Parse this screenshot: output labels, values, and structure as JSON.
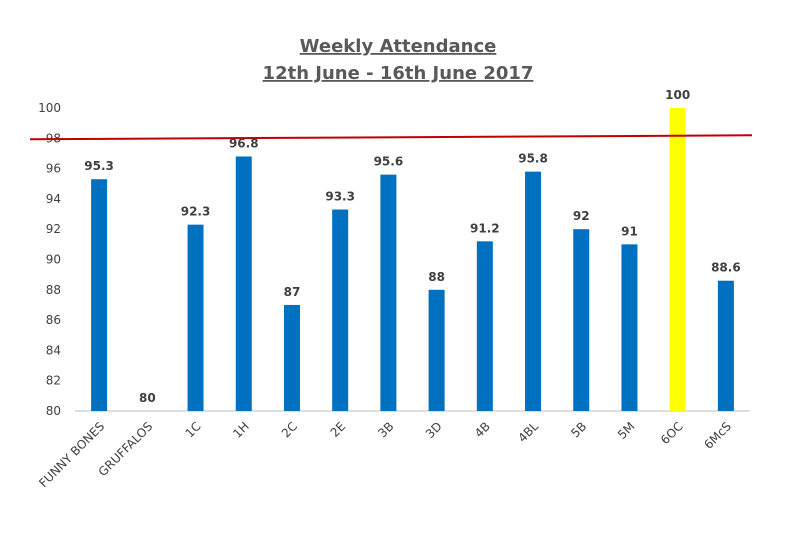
{
  "chart_data": {
    "type": "bar",
    "title": "Weekly Attendance",
    "subtitle": "12th June - 16th June 2017",
    "categories": [
      "FUNNY BONES",
      "GRUFFALOS",
      "1C",
      "1H",
      "2C",
      "2E",
      "3B",
      "3D",
      "4B",
      "4BL",
      "5B",
      "5M",
      "6OC",
      "6McS"
    ],
    "values": [
      95.3,
      80,
      92.3,
      96.8,
      87,
      93.3,
      95.6,
      88,
      91.2,
      95.8,
      92,
      91,
      100,
      88.6
    ],
    "data_labels": [
      "95.3",
      "80",
      "92.3",
      "96.8",
      "87",
      "93.3",
      "95.6",
      "88",
      "91.2",
      "95.8",
      "92",
      "91",
      "100",
      "88.6"
    ],
    "ylim": [
      80,
      100
    ],
    "yticks": [
      "80",
      "82",
      "84",
      "86",
      "88",
      "90",
      "92",
      "94",
      "96",
      "98",
      "100"
    ],
    "target_line": 98,
    "highlight_category": "6OC",
    "colors": {
      "bar": "#0070C0",
      "highlight_bar": "#FFFF00",
      "target_line": "#C00000",
      "axis": "#BFBFBF",
      "text": "#404040",
      "title": "#595959"
    },
    "grid": false,
    "legend": "none"
  }
}
